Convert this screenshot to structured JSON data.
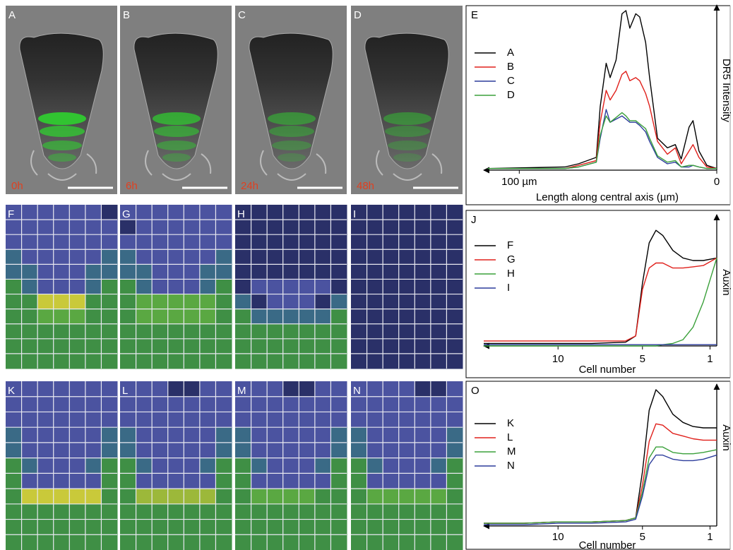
{
  "panels": [
    {
      "label": "A",
      "time": "0h"
    },
    {
      "label": "B",
      "time": "6h"
    },
    {
      "label": "C",
      "time": "24h"
    },
    {
      "label": "D",
      "time": "48h"
    },
    {
      "label": "F"
    },
    {
      "label": "G"
    },
    {
      "label": "H"
    },
    {
      "label": "I"
    },
    {
      "label": "K"
    },
    {
      "label": "L"
    },
    {
      "label": "M"
    },
    {
      "label": "N"
    }
  ],
  "chart_data": [
    {
      "type": "line",
      "panel": "E",
      "y_label": "DR5 Intensity",
      "x_label": "Length along central axis (µm)",
      "x": [
        116,
        77,
        70,
        61,
        59,
        56,
        54,
        51,
        48,
        46,
        44,
        41,
        39,
        36,
        34,
        30,
        25,
        21,
        18,
        14,
        12,
        9,
        5,
        0
      ],
      "xlim": [
        118,
        0
      ],
      "xticks": [
        {
          "value": 100,
          "label": "100 µm"
        },
        0
      ],
      "ylim": [
        0,
        100
      ],
      "series": [
        {
          "name": "A",
          "color": "#000000",
          "values": [
            1,
            2,
            4,
            8,
            40,
            67,
            58,
            69,
            98,
            100,
            89,
            98,
            96,
            80,
            58,
            20,
            14,
            16,
            7,
            27,
            31,
            12,
            3,
            1
          ]
        },
        {
          "name": "B",
          "color": "#e0201b",
          "values": [
            1,
            1,
            3,
            6,
            30,
            50,
            44,
            50,
            60,
            62,
            56,
            58,
            56,
            48,
            40,
            18,
            10,
            14,
            4,
            12,
            16,
            8,
            2,
            1
          ]
        },
        {
          "name": "C",
          "color": "#2c3c9c",
          "values": [
            1,
            1,
            2,
            5,
            20,
            38,
            30,
            32,
            34,
            32,
            30,
            30,
            28,
            24,
            18,
            8,
            4,
            5,
            2,
            2,
            3,
            2,
            1,
            1
          ]
        },
        {
          "name": "D",
          "color": "#3aa03a",
          "values": [
            1,
            1,
            2,
            5,
            22,
            34,
            30,
            33,
            36,
            34,
            31,
            31,
            29,
            26,
            20,
            9,
            5,
            6,
            2,
            3,
            3,
            2,
            1,
            1
          ]
        }
      ]
    },
    {
      "type": "line",
      "panel": "J",
      "y_label": "Auxin",
      "x_label": "Cell number",
      "x": [
        14.4,
        12,
        10,
        8,
        6,
        5.4,
        5,
        4.6,
        4.2,
        3.8,
        3.2,
        2.6,
        2,
        1.4,
        0.6
      ],
      "xlim": [
        14.4,
        0.6
      ],
      "xticks": [
        10,
        5,
        1
      ],
      "ylim": [
        0,
        100
      ],
      "series": [
        {
          "name": "F",
          "color": "#000000",
          "values": [
            2,
            2,
            2,
            2,
            3,
            8,
            50,
            82,
            92,
            88,
            76,
            70,
            68,
            68,
            70
          ]
        },
        {
          "name": "G",
          "color": "#e0201b",
          "values": [
            4,
            4,
            4,
            4,
            4,
            8,
            45,
            62,
            66,
            66,
            62,
            62,
            63,
            64,
            70
          ]
        },
        {
          "name": "H",
          "color": "#3aa03a",
          "values": [
            0,
            0,
            0,
            0,
            0,
            0,
            0,
            0,
            0,
            1,
            2,
            5,
            15,
            35,
            70
          ]
        },
        {
          "name": "I",
          "color": "#2c3c9c",
          "values": [
            1,
            1,
            1,
            1,
            1,
            1,
            1,
            1,
            1,
            1,
            1,
            1,
            1,
            1,
            1
          ]
        }
      ]
    },
    {
      "type": "line",
      "panel": "O",
      "y_label": "Auxin",
      "x_label": "Cell number",
      "x": [
        14.4,
        12,
        10,
        8,
        6,
        5.4,
        5,
        4.6,
        4.2,
        3.8,
        3.2,
        2.6,
        2,
        1.4,
        0.6
      ],
      "xlim": [
        14.4,
        0.6
      ],
      "xticks": [
        10,
        5,
        1
      ],
      "ylim": [
        0,
        100
      ],
      "series": [
        {
          "name": "K",
          "color": "#000000",
          "values": [
            2,
            2,
            3,
            3,
            4,
            6,
            40,
            85,
            100,
            95,
            82,
            76,
            73,
            72,
            72
          ]
        },
        {
          "name": "L",
          "color": "#e0201b",
          "values": [
            2,
            2,
            3,
            3,
            4,
            6,
            30,
            62,
            75,
            74,
            68,
            66,
            64,
            63,
            63
          ]
        },
        {
          "name": "M",
          "color": "#3aa03a",
          "values": [
            2,
            2,
            3,
            3,
            4,
            6,
            25,
            50,
            58,
            58,
            54,
            53,
            53,
            54,
            56
          ]
        },
        {
          "name": "N",
          "color": "#2c3c9c",
          "values": [
            1,
            1,
            2,
            2,
            3,
            5,
            22,
            45,
            52,
            52,
            49,
            48,
            48,
            49,
            52
          ]
        }
      ]
    }
  ]
}
